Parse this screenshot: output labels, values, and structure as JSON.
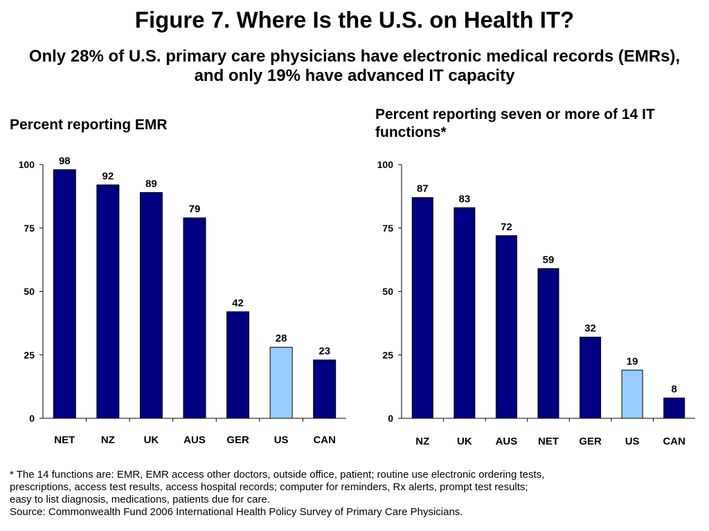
{
  "title": "Figure 7. Where Is the U.S. on Health IT?",
  "subtitle": "Only 28% of U.S. primary care physicians have electronic medical records (EMRs), and only 19% have advanced IT capacity",
  "colors": {
    "bar": "#000080",
    "highlight": "#99CCFF"
  },
  "chart_data": [
    {
      "type": "bar",
      "title": "Percent reporting EMR",
      "categories": [
        "NET",
        "NZ",
        "UK",
        "AUS",
        "GER",
        "US",
        "CAN"
      ],
      "values": [
        98,
        92,
        89,
        79,
        42,
        28,
        23
      ],
      "highlight": "US",
      "yticks": [
        0,
        25,
        50,
        75,
        100
      ],
      "ylim": [
        0,
        100
      ],
      "grid": false
    },
    {
      "type": "bar",
      "title": "Percent reporting seven or more of 14 IT functions*",
      "categories": [
        "NZ",
        "UK",
        "AUS",
        "NET",
        "GER",
        "US",
        "CAN"
      ],
      "values": [
        87,
        83,
        72,
        59,
        32,
        19,
        8
      ],
      "highlight": "US",
      "yticks": [
        0,
        25,
        50,
        75,
        100
      ],
      "ylim": [
        0,
        100
      ],
      "grid": false
    }
  ],
  "footnote": {
    "lines": [
      "* The 14 functions are: EMR, EMR access other doctors, outside office, patient; routine use electronic ordering  tests,",
      "prescriptions, access test results, access hospital records; computer for  reminders, Rx alerts, prompt test results;",
      "easy to list diagnosis, medications, patients due for care."
    ],
    "source": "Source: Commonwealth Fund 2006 International Health Policy Survey of Primary Care Physicians."
  }
}
